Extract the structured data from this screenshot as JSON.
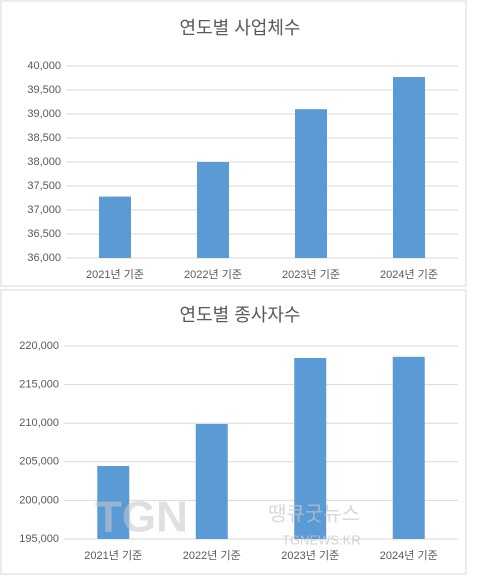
{
  "chart_data": [
    {
      "type": "bar",
      "title": "연도별 사업체수",
      "categories": [
        "2021년 기준",
        "2022년 기준",
        "2023년 기준",
        "2024년 기준"
      ],
      "values": [
        37280,
        38000,
        39100,
        39770
      ],
      "color": "#5b9bd5",
      "ylim": [
        36000,
        40000
      ],
      "yticks": [
        {
          "value": 36000,
          "label": "36,000"
        },
        {
          "value": 36500,
          "label": "36,500"
        },
        {
          "value": 37000,
          "label": "37,000"
        },
        {
          "value": 37500,
          "label": "37,500"
        },
        {
          "value": 38000,
          "label": "38,000"
        },
        {
          "value": 38500,
          "label": "38,500"
        },
        {
          "value": 39000,
          "label": "39,000"
        },
        {
          "value": 39500,
          "label": "39,500"
        },
        {
          "value": 40000,
          "label": "40,000"
        }
      ],
      "grid": true
    },
    {
      "type": "bar",
      "title": "연도별 종사자수",
      "categories": [
        "2021년 기준",
        "2022년 기준",
        "2023년 기준",
        "2024년 기준"
      ],
      "values": [
        204460,
        209900,
        218450,
        218600
      ],
      "color": "#5b9bd5",
      "ylim": [
        195000,
        220000
      ],
      "yticks": [
        {
          "value": 195000,
          "label": "195,000"
        },
        {
          "value": 200000,
          "label": "200,000"
        },
        {
          "value": 205000,
          "label": "205,000"
        },
        {
          "value": 210000,
          "label": "210,000"
        },
        {
          "value": 215000,
          "label": "215,000"
        },
        {
          "value": 220000,
          "label": "220,000"
        }
      ],
      "grid": true
    }
  ],
  "watermark": {
    "logo": "TGN",
    "name": "땡큐굿뉴스",
    "site": "TGNEWS.KR"
  }
}
